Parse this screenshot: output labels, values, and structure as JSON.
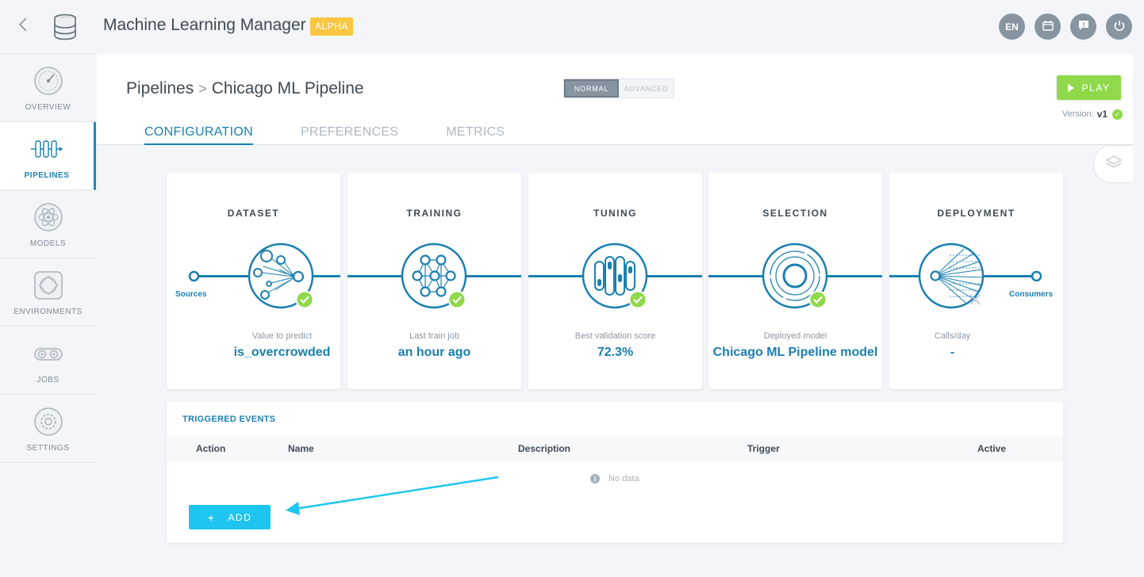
{
  "header": {
    "title": "Machine Learning Manager",
    "badge": "ALPHA",
    "lang_label": "EN",
    "icons": [
      "back-chevron-icon",
      "database-icon",
      "calendar-icon",
      "feedback-icon",
      "power-icon"
    ]
  },
  "sidebar": {
    "items": [
      {
        "label": "OVERVIEW",
        "icon": "gauge-icon"
      },
      {
        "label": "PIPELINES",
        "icon": "pipeline-icon"
      },
      {
        "label": "MODELS",
        "icon": "atom-icon"
      },
      {
        "label": "ENVIRONMENTS",
        "icon": "environment-icon"
      },
      {
        "label": "JOBS",
        "icon": "gears-icon"
      },
      {
        "label": "SETTINGS",
        "icon": "settings-gear-icon"
      }
    ],
    "active": "PIPELINES"
  },
  "breadcrumb": {
    "root": "Pipelines",
    "separator": ">",
    "current": "Chicago ML Pipeline"
  },
  "mode": {
    "normal": "NORMAL",
    "advanced": "ADVANCED",
    "selected": "NORMAL"
  },
  "play": {
    "label": "PLAY"
  },
  "version": {
    "label": "Version:",
    "value": "v1"
  },
  "tabs": [
    {
      "label": "CONFIGURATION",
      "active": true
    },
    {
      "label": "PREFERENCES",
      "active": false
    },
    {
      "label": "METRICS",
      "active": false
    }
  ],
  "steps": [
    {
      "title": "DATASET",
      "sub": "Value to predict",
      "value": "is_overcrowded",
      "node": "Sources",
      "status": "done"
    },
    {
      "title": "TRAINING",
      "sub": "Last train job",
      "value": "an hour ago",
      "status": "done"
    },
    {
      "title": "TUNING",
      "sub": "Best validation score",
      "value": "72.3%",
      "status": "done"
    },
    {
      "title": "SELECTION",
      "sub": "Deployed model",
      "value": "Chicago ML Pipeline model",
      "status": "done"
    },
    {
      "title": "DEPLOYMENT",
      "sub": "Calls/day",
      "value": "-",
      "node": "Consumers",
      "status": "not-deployed"
    }
  ],
  "events": {
    "title": "TRIGGERED EVENTS",
    "columns": [
      "Action",
      "Name",
      "Description",
      "Trigger",
      "Active"
    ],
    "empty": "No data",
    "add_label": "ADD"
  },
  "colors": {
    "accent": "#1b7fb0",
    "success": "#8fd94a",
    "add_button": "#1ec6ef",
    "badge": "#f9c642"
  }
}
